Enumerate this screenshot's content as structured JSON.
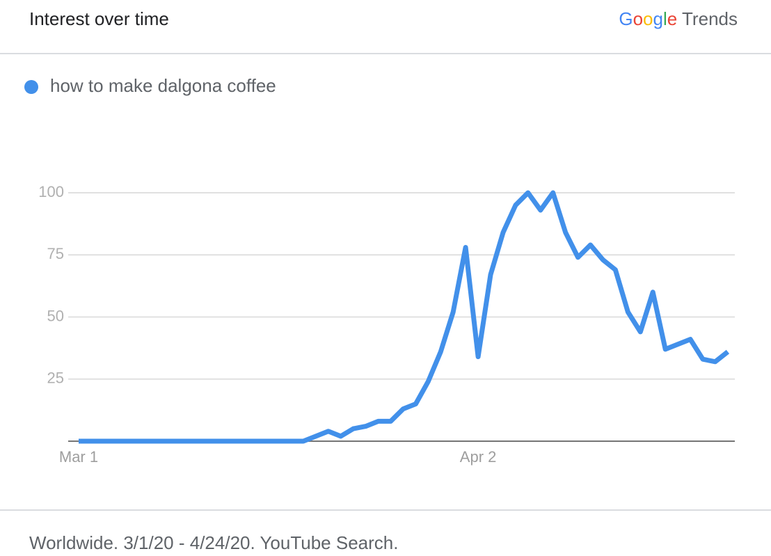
{
  "chart_data": {
    "type": "line",
    "title": "Interest over time",
    "brand": "Google Trends",
    "note": "Worldwide. 3/1/20 - 4/24/20. YouTube Search.",
    "categories": [
      "Mar 1",
      null,
      null,
      null,
      null,
      null,
      null,
      null,
      null,
      null,
      null,
      null,
      null,
      null,
      null,
      null,
      null,
      null,
      null,
      null,
      null,
      null,
      null,
      null,
      null,
      null,
      null,
      null,
      null,
      null,
      null,
      null,
      "Apr 2",
      null,
      null,
      null,
      null,
      null,
      null,
      null,
      null,
      null,
      null,
      null,
      null,
      null,
      null,
      null,
      null,
      null,
      null,
      null,
      null
    ],
    "series": [
      {
        "name": "how to make dalgona coffee",
        "color": "#4290ea",
        "values": [
          0,
          0,
          0,
          0,
          0,
          0,
          0,
          0,
          0,
          0,
          0,
          0,
          0,
          0,
          0,
          0,
          0,
          0,
          0,
          2,
          4,
          2,
          5,
          6,
          8,
          8,
          13,
          15,
          24,
          36,
          52,
          78,
          34,
          67,
          84,
          95,
          100,
          93,
          100,
          84,
          74,
          79,
          73,
          69,
          52,
          44,
          60,
          37,
          39,
          41,
          33,
          32,
          36
        ]
      }
    ],
    "ylim": [
      0,
      100
    ],
    "yticks": [
      25,
      50,
      75,
      100
    ],
    "grid": true
  }
}
